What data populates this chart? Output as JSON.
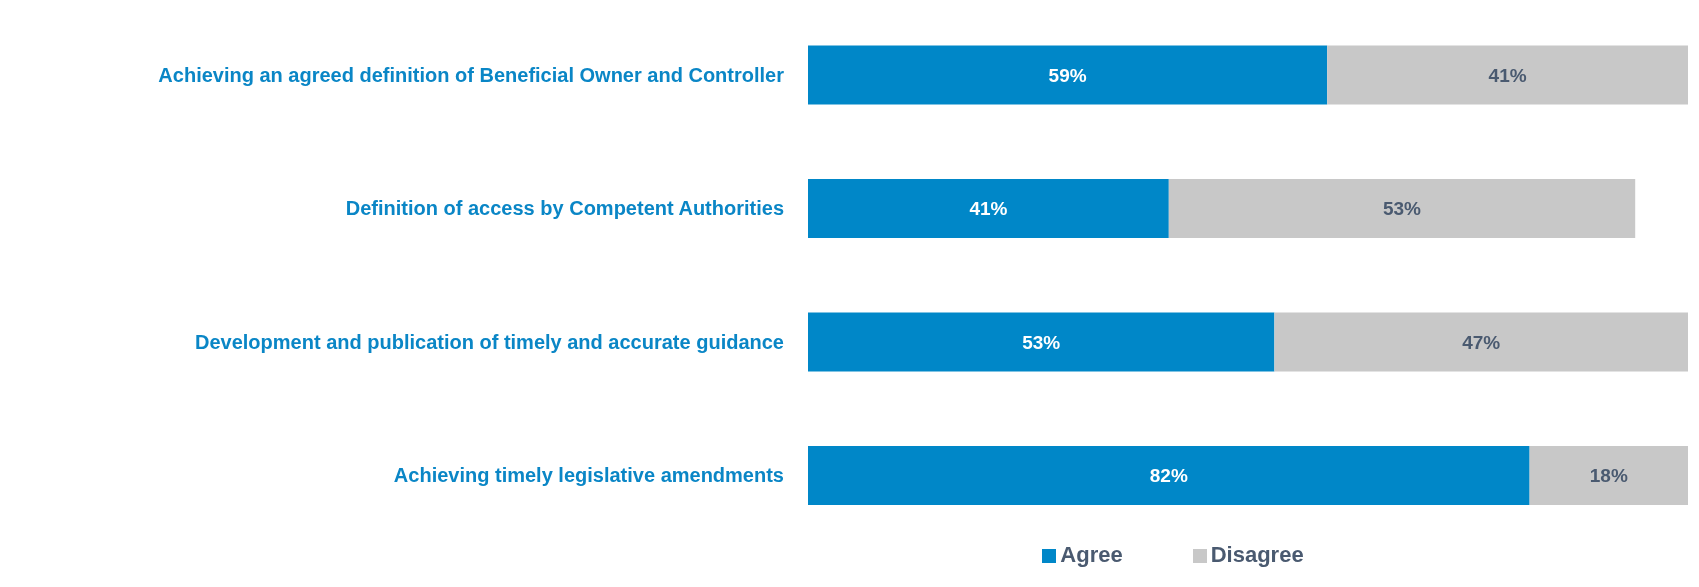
{
  "chart_data": {
    "type": "bar",
    "orientation": "horizontal",
    "stacked": true,
    "legend": "bottom",
    "tick_labels": "y",
    "categories": [
      "Achieving an agreed definition of Beneficial Owner and Controller",
      "Definition of access by Competent Authorities",
      "Development and publication of timely and accurate guidance",
      "Achieving timely legislative amendments"
    ],
    "series": [
      {
        "name": "Agree",
        "color": "#0087c8",
        "values": [
          59,
          41,
          53,
          82
        ],
        "value_labels": [
          "59%",
          "41%",
          "53%",
          "82%"
        ]
      },
      {
        "name": "Disagree",
        "color": "#c8c8c8",
        "values": [
          41,
          53,
          47,
          18
        ],
        "value_labels": [
          "41%",
          "53%",
          "47%",
          "18%"
        ]
      }
    ]
  }
}
